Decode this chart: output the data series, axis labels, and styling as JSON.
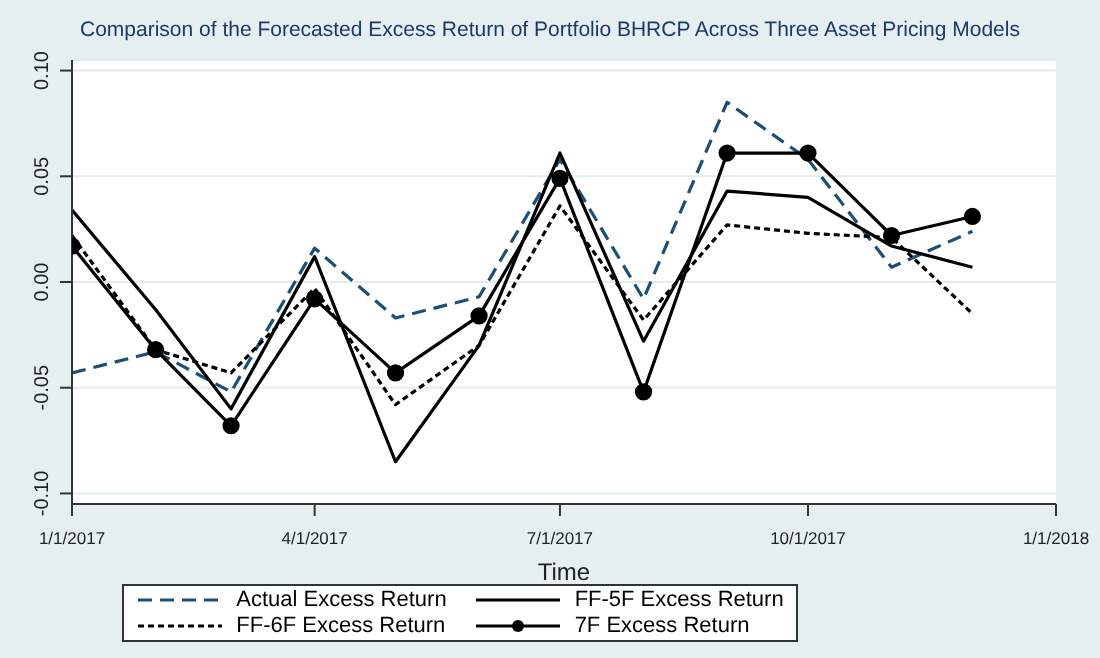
{
  "chart_data": {
    "type": "line",
    "title": "Comparison of the Forecasted Excess Return of Portfolio BHRCP Across Three Asset Pricing Models",
    "xlabel": "Time",
    "x": [
      "2017-01-01",
      "2017-02-01",
      "2017-03-01",
      "2017-04-01",
      "2017-05-01",
      "2017-06-01",
      "2017-07-01",
      "2017-08-01",
      "2017-09-01",
      "2017-10-01",
      "2017-11-01",
      "2017-12-01"
    ],
    "series": [
      {
        "name": "Actual Excess Return",
        "color": "#1a4f7a",
        "line_style": "dashed",
        "marker": "none",
        "values": [
          -0.043,
          -0.033,
          -0.052,
          0.016,
          -0.017,
          -0.007,
          0.058,
          -0.008,
          0.085,
          0.058,
          0.007,
          0.024
        ]
      },
      {
        "name": "FF-5F Excess Return",
        "color": "#000000",
        "line_style": "solid",
        "marker": "none",
        "values": [
          0.034,
          -0.013,
          -0.06,
          0.012,
          -0.085,
          -0.03,
          0.061,
          -0.028,
          0.043,
          0.04,
          0.017,
          0.007
        ]
      },
      {
        "name": "FF-6F Excess Return",
        "color": "#000000",
        "line_style": "dotted",
        "marker": "none",
        "values": [
          0.022,
          -0.032,
          -0.043,
          -0.003,
          -0.058,
          -0.03,
          0.036,
          -0.018,
          0.027,
          0.023,
          0.021,
          -0.015
        ]
      },
      {
        "name": "7F Excess Return",
        "color": "#000000",
        "line_style": "solid",
        "marker": "circle",
        "values": [
          0.017,
          -0.032,
          -0.068,
          -0.008,
          -0.043,
          -0.016,
          0.049,
          -0.052,
          0.061,
          0.061,
          0.022,
          0.031
        ]
      }
    ],
    "xlim": [
      "2017-01-01",
      "2018-01-01"
    ],
    "xticks": [
      {
        "value": "2017-01-01",
        "label": "1/1/2017"
      },
      {
        "value": "2017-04-01",
        "label": "4/1/2017"
      },
      {
        "value": "2017-07-01",
        "label": "7/1/2017"
      },
      {
        "value": "2017-10-01",
        "label": "10/1/2017"
      },
      {
        "value": "2018-01-01",
        "label": "1/1/2018"
      }
    ],
    "ylim": [
      -0.105,
      0.105
    ],
    "yticks": [
      {
        "value": -0.1,
        "label": "-0.10"
      },
      {
        "value": -0.05,
        "label": "-0.05"
      },
      {
        "value": 0,
        "label": "0.00"
      },
      {
        "value": 0.05,
        "label": "0.05"
      },
      {
        "value": 0.1,
        "label": "0.10"
      }
    ],
    "grid": "y",
    "legend": "bottom"
  }
}
